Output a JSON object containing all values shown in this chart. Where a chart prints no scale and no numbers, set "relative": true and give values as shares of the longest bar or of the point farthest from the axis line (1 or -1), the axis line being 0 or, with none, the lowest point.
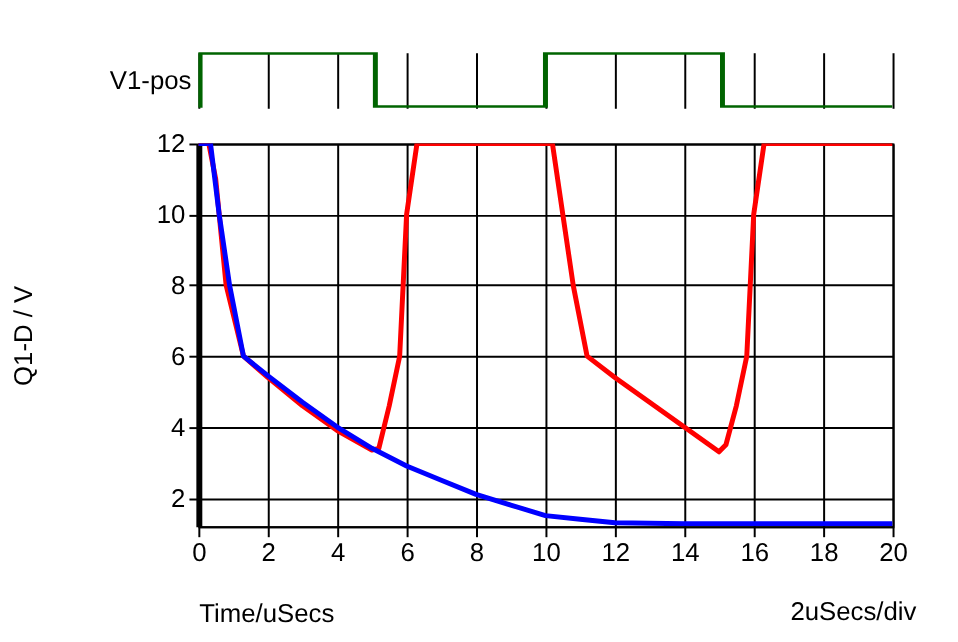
{
  "chart_data": [
    {
      "type": "step",
      "ylabel": "V1-pos",
      "relative": true,
      "xlim": [
        0,
        20
      ],
      "xticks": [
        0,
        2,
        4,
        6,
        8,
        10,
        12,
        14,
        16,
        18,
        20
      ],
      "tick_labels": false,
      "grid": "x",
      "series": [
        {
          "color": "#006400",
          "x": [
            0,
            0.05,
            5.1,
            10,
            15.1,
            20
          ],
          "values": [
            0,
            1,
            0,
            1,
            0,
            0
          ]
        }
      ]
    },
    {
      "type": "line",
      "xlabel": "Time/uSecs",
      "ylabel": "Q1-D / V",
      "annotations": [
        "2uSecs/div"
      ],
      "xlim": [
        0,
        20
      ],
      "ylim": [
        1.2,
        12
      ],
      "xticks": [
        0,
        2,
        4,
        6,
        8,
        10,
        12,
        14,
        16,
        18,
        20
      ],
      "yticks": [
        2,
        4,
        6,
        8,
        10,
        12
      ],
      "grid": true,
      "series": [
        {
          "color": "#ff0000",
          "x": [
            0,
            0.3,
            0.5,
            0.8,
            1.3,
            2,
            3,
            4,
            5,
            5.2,
            5.5,
            5.8,
            6,
            6.3,
            10.2,
            10.5,
            10.8,
            11.2,
            12,
            13,
            14,
            15,
            15.2,
            15.5,
            15.8,
            16,
            16.3,
            20
          ],
          "values": [
            12,
            12,
            11,
            8,
            6,
            5.4,
            4.6,
            3.9,
            3.35,
            3.4,
            4.6,
            6,
            10,
            12,
            12,
            10,
            8,
            6,
            5.4,
            4.7,
            4.0,
            3.3,
            3.5,
            4.6,
            6,
            10,
            12,
            12
          ]
        },
        {
          "color": "#0000ff",
          "x": [
            0,
            0.35,
            0.6,
            0.9,
            1.3,
            2,
            3,
            4,
            5,
            6,
            7,
            8,
            9,
            10,
            11,
            12,
            14,
            20
          ],
          "values": [
            12,
            12,
            10,
            8,
            6,
            5.45,
            4.7,
            4.0,
            3.4,
            2.9,
            2.5,
            2.1,
            1.8,
            1.5,
            1.4,
            1.3,
            1.27,
            1.27
          ]
        }
      ]
    }
  ]
}
